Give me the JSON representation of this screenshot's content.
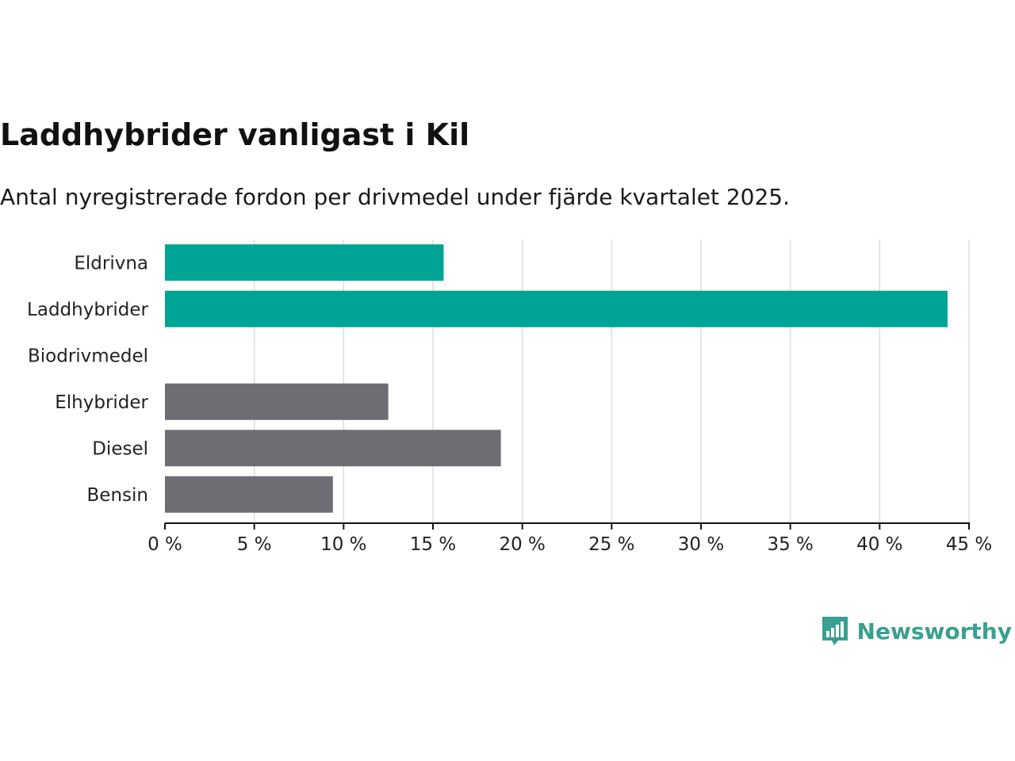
{
  "title": "Laddhybrider vanligast i Kil",
  "subtitle": "Antal nyregistrerade fordon per drivmedel under fjärde kvartalet 2025.",
  "brand": "Newsworthy",
  "colors": {
    "highlight": "#00a497",
    "other": "#6e6d73",
    "grid": "#dddddd",
    "axis": "#111111",
    "brand": "#3aa08f"
  },
  "chart_data": {
    "type": "bar",
    "orientation": "horizontal",
    "categories": [
      "Eldrivna",
      "Laddhybrider",
      "Biodrivmedel",
      "Elhybrider",
      "Diesel",
      "Bensin"
    ],
    "values": [
      15.6,
      43.8,
      0,
      12.5,
      18.8,
      9.4
    ],
    "highlighted": [
      true,
      true,
      true,
      false,
      false,
      false
    ],
    "xlim": [
      0,
      45
    ],
    "xticks": [
      0,
      5,
      10,
      15,
      20,
      25,
      30,
      35,
      40,
      45
    ],
    "xtick_labels": [
      "0 %",
      "5 %",
      "10 %",
      "15 %",
      "20 %",
      "25 %",
      "30 %",
      "35 %",
      "40 %",
      "45 %"
    ],
    "grid": true
  }
}
